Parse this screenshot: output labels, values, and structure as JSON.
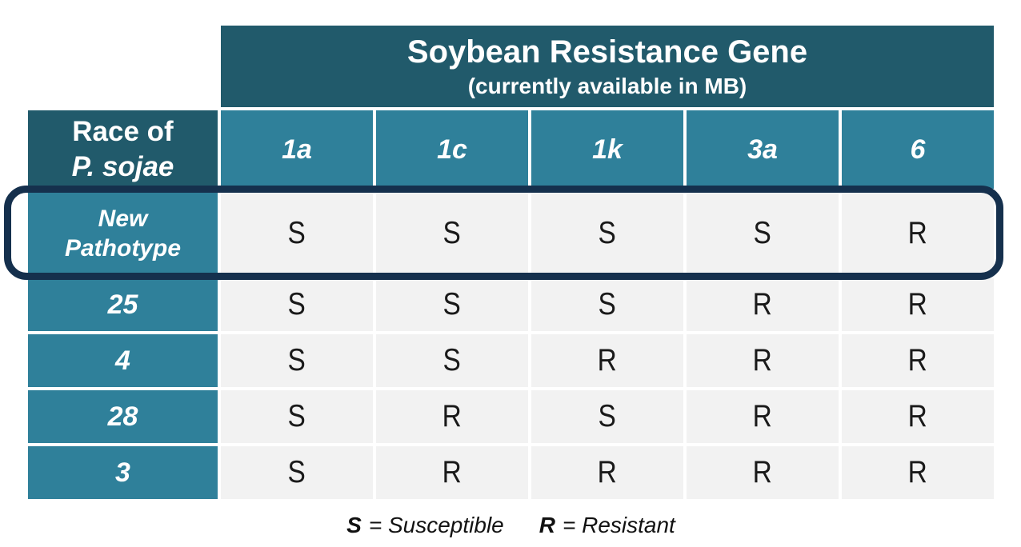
{
  "chart_data": {
    "type": "table",
    "title": "Soybean Resistance Gene",
    "subtitle": "(currently available in MB)",
    "corner_header": {
      "line1": "Race of",
      "line2": "P. sojae"
    },
    "columns": [
      "1a",
      "1c",
      "1k",
      "3a",
      "6"
    ],
    "row_labels": [
      "New Pathotype",
      "25",
      "4",
      "28",
      "3"
    ],
    "row_label_display": {
      "new_pathotype_line1": "New",
      "new_pathotype_line2": "Pathotype"
    },
    "values": [
      [
        "S",
        "S",
        "S",
        "S",
        "R"
      ],
      [
        "S",
        "S",
        "S",
        "R",
        "R"
      ],
      [
        "S",
        "S",
        "R",
        "R",
        "R"
      ],
      [
        "S",
        "R",
        "S",
        "R",
        "R"
      ],
      [
        "S",
        "R",
        "R",
        "R",
        "R"
      ]
    ],
    "highlighted_row": "New Pathotype",
    "legend": {
      "s_symbol": "S",
      "s_text": "= Susceptible",
      "r_symbol": "R",
      "r_text": "= Resistant"
    }
  },
  "colors": {
    "dark_teal": "#215A6B",
    "light_teal": "#2F809A",
    "cell_gray": "#F2F2F2",
    "highlight_navy": "#15304D",
    "header_text": "#FFFFFF",
    "cell_text": "#1A1A1A"
  }
}
